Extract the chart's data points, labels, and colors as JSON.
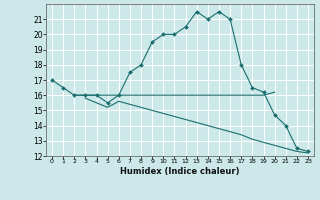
{
  "title": "",
  "xlabel": "Humidex (Indice chaleur)",
  "ylabel": "",
  "bg_color": "#cce8e8",
  "grid_color": "#ffffff",
  "line_color": "#1a6e6e",
  "line1_x": [
    0,
    1,
    2,
    3,
    4,
    5,
    6,
    7,
    8,
    9,
    10,
    11,
    12,
    13,
    14,
    15,
    16,
    17,
    18,
    19,
    20,
    21,
    22,
    23
  ],
  "line1_y": [
    17.0,
    16.5,
    16.0,
    16.0,
    16.0,
    15.5,
    16.0,
    17.5,
    18.0,
    19.5,
    20.0,
    20.0,
    20.5,
    21.5,
    21.0,
    21.5,
    21.0,
    18.0,
    16.5,
    16.2,
    14.7,
    14.0,
    12.5,
    12.3
  ],
  "line2_x": [
    2,
    3,
    4,
    5,
    6,
    7,
    8,
    9,
    10,
    11,
    12,
    13,
    14,
    15,
    16,
    17,
    18,
    19,
    20
  ],
  "line2_y": [
    16.0,
    16.0,
    16.0,
    16.0,
    16.0,
    16.0,
    16.0,
    16.0,
    16.0,
    16.0,
    16.0,
    16.0,
    16.0,
    16.0,
    16.0,
    16.0,
    16.0,
    16.0,
    16.2
  ],
  "line3_x": [
    3,
    4,
    5,
    6,
    7,
    8,
    9,
    10,
    11,
    12,
    13,
    14,
    15,
    16,
    17,
    18,
    19,
    20,
    21,
    22,
    23
  ],
  "line3_y": [
    15.8,
    15.5,
    15.2,
    15.6,
    15.4,
    15.2,
    15.0,
    14.8,
    14.6,
    14.4,
    14.2,
    14.0,
    13.8,
    13.6,
    13.4,
    13.1,
    12.9,
    12.7,
    12.5,
    12.3,
    12.2
  ],
  "xlim": [
    -0.5,
    23.5
  ],
  "ylim": [
    12,
    22
  ],
  "yticks": [
    12,
    13,
    14,
    15,
    16,
    17,
    18,
    19,
    20,
    21
  ],
  "xticks": [
    0,
    1,
    2,
    3,
    4,
    5,
    6,
    7,
    8,
    9,
    10,
    11,
    12,
    13,
    14,
    15,
    16,
    17,
    18,
    19,
    20,
    21,
    22,
    23
  ],
  "marker": "D",
  "markersize": 2.0,
  "linewidth": 0.8
}
